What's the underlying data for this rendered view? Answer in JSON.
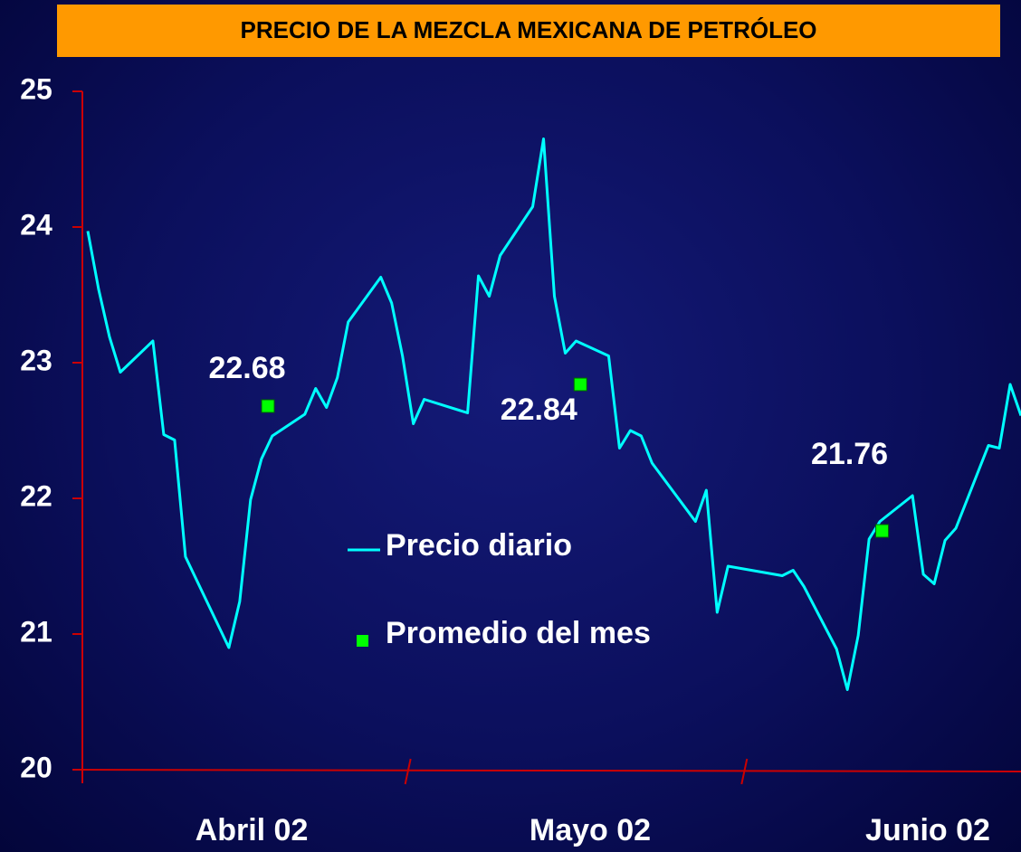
{
  "chart_data": {
    "type": "line",
    "title": "PRECIO DE LA MEZCLA MEXICANA DE PETRÓLEO",
    "categories": [
      "Abril 02",
      "Mayo 02",
      "Junio 02"
    ],
    "xlim": [
      0.5,
      87
    ],
    "xticks": [
      30.5,
      61.5
    ],
    "ylim": [
      20,
      25
    ],
    "yticks": [
      20,
      21,
      22,
      23,
      24,
      25
    ],
    "series": [
      {
        "name": "Precio diario",
        "color": "#00ffff",
        "x": [
          1,
          2,
          3,
          4,
          7,
          8,
          9,
          10,
          14,
          15,
          16,
          17,
          18,
          21,
          22,
          23,
          24,
          25,
          28,
          29,
          30,
          31,
          32,
          36,
          37,
          38,
          39,
          42,
          43,
          44,
          45,
          46,
          49,
          50,
          51,
          52,
          53,
          57,
          58,
          59,
          60,
          65,
          66,
          67,
          70,
          71,
          72,
          73,
          74,
          77,
          78,
          79,
          80,
          81,
          84,
          85,
          86,
          87
        ],
        "values": [
          23.97,
          23.54,
          23.19,
          22.93,
          23.16,
          22.47,
          22.43,
          21.57,
          20.9,
          21.24,
          21.99,
          22.29,
          22.46,
          22.62,
          22.81,
          22.67,
          22.89,
          23.3,
          23.63,
          23.44,
          23.05,
          22.55,
          22.73,
          22.63,
          23.64,
          23.49,
          23.79,
          24.15,
          24.65,
          23.49,
          23.07,
          23.16,
          23.05,
          22.37,
          22.5,
          22.46,
          22.26,
          21.83,
          22.06,
          21.16,
          21.5,
          21.43,
          21.47,
          21.35,
          20.89,
          20.59,
          20.99,
          21.7,
          21.83,
          22.02,
          21.44,
          21.37,
          21.69,
          21.78,
          22.39,
          22.37,
          22.84,
          22.61
        ]
      },
      {
        "name": "Promedio del mes",
        "color": "#00ff00",
        "type": "scatter",
        "x": [
          17.6,
          46.4,
          74.2
        ],
        "values": [
          22.68,
          22.84,
          21.76
        ]
      }
    ]
  }
}
